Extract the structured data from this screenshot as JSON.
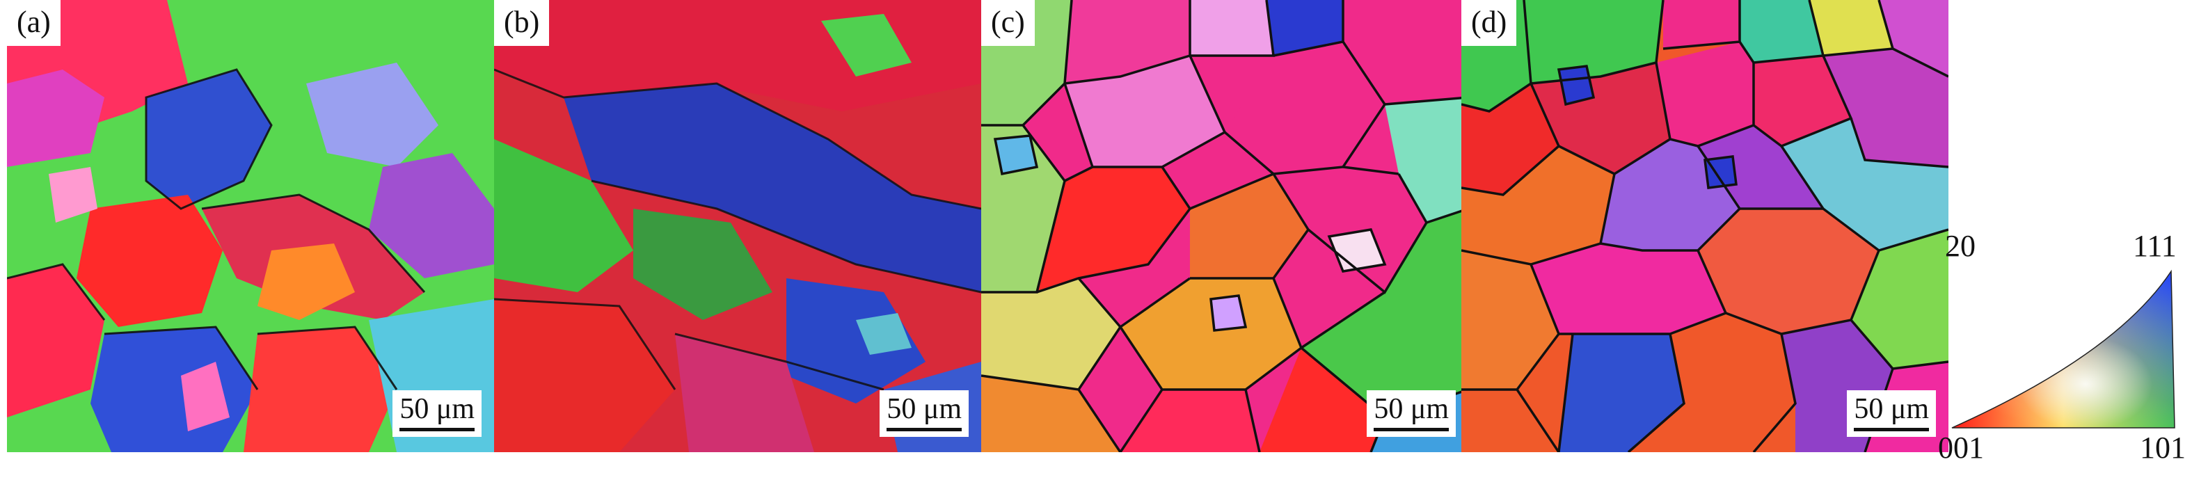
{
  "panels": [
    {
      "label": "(a)",
      "scale_bar": "50 μm"
    },
    {
      "label": "(b)",
      "scale_bar": "50 μm"
    },
    {
      "label": "(c)",
      "scale_bar": "50 μm"
    },
    {
      "label": "(d)",
      "scale_bar": "50 μm"
    }
  ],
  "legend": {
    "top_left": "20",
    "top_right": "111",
    "bottom_left": "001",
    "bottom_right": "101"
  },
  "colors": {
    "red_001": "#ff2020",
    "green_101": "#40e040",
    "blue_111": "#3040d0",
    "magenta": "#ff20a0",
    "orange": "#ff8030",
    "boundary": "#111111"
  }
}
